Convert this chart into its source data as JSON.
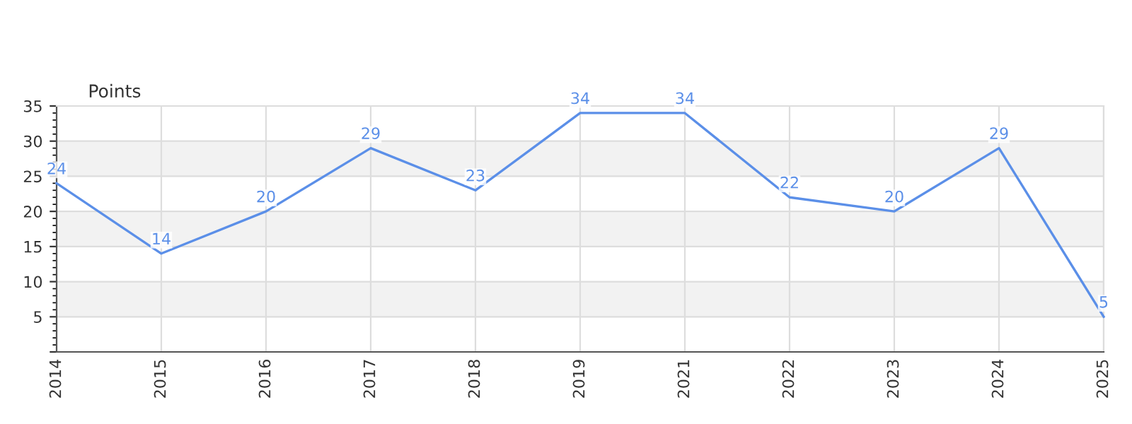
{
  "chart_data": {
    "type": "line",
    "ylabel": "Points",
    "categories": [
      "2014",
      "2015",
      "2016",
      "2017",
      "2018",
      "2019",
      "2021",
      "2022",
      "2023",
      "2024",
      "2025"
    ],
    "series": [
      {
        "color": "#5b8fe8",
        "values": [
          24,
          14,
          20,
          29,
          23,
          34,
          34,
          22,
          20,
          29,
          5
        ]
      }
    ],
    "ylim": [
      0,
      35
    ],
    "yticks": [
      {
        "value": 0,
        "label": null
      },
      5,
      10,
      15,
      20,
      25,
      30,
      35
    ],
    "grid": true,
    "data_labels": true,
    "marker": "none",
    "line_style": "solid",
    "bands": [
      {
        "axis": "y",
        "from": 5,
        "to": 10,
        "color": "#f2f2f2"
      },
      {
        "axis": "y",
        "from": 15,
        "to": 20,
        "color": "#f2f2f2"
      },
      {
        "axis": "y",
        "from": 25,
        "to": 30,
        "color": "#f2f2f2"
      }
    ]
  }
}
